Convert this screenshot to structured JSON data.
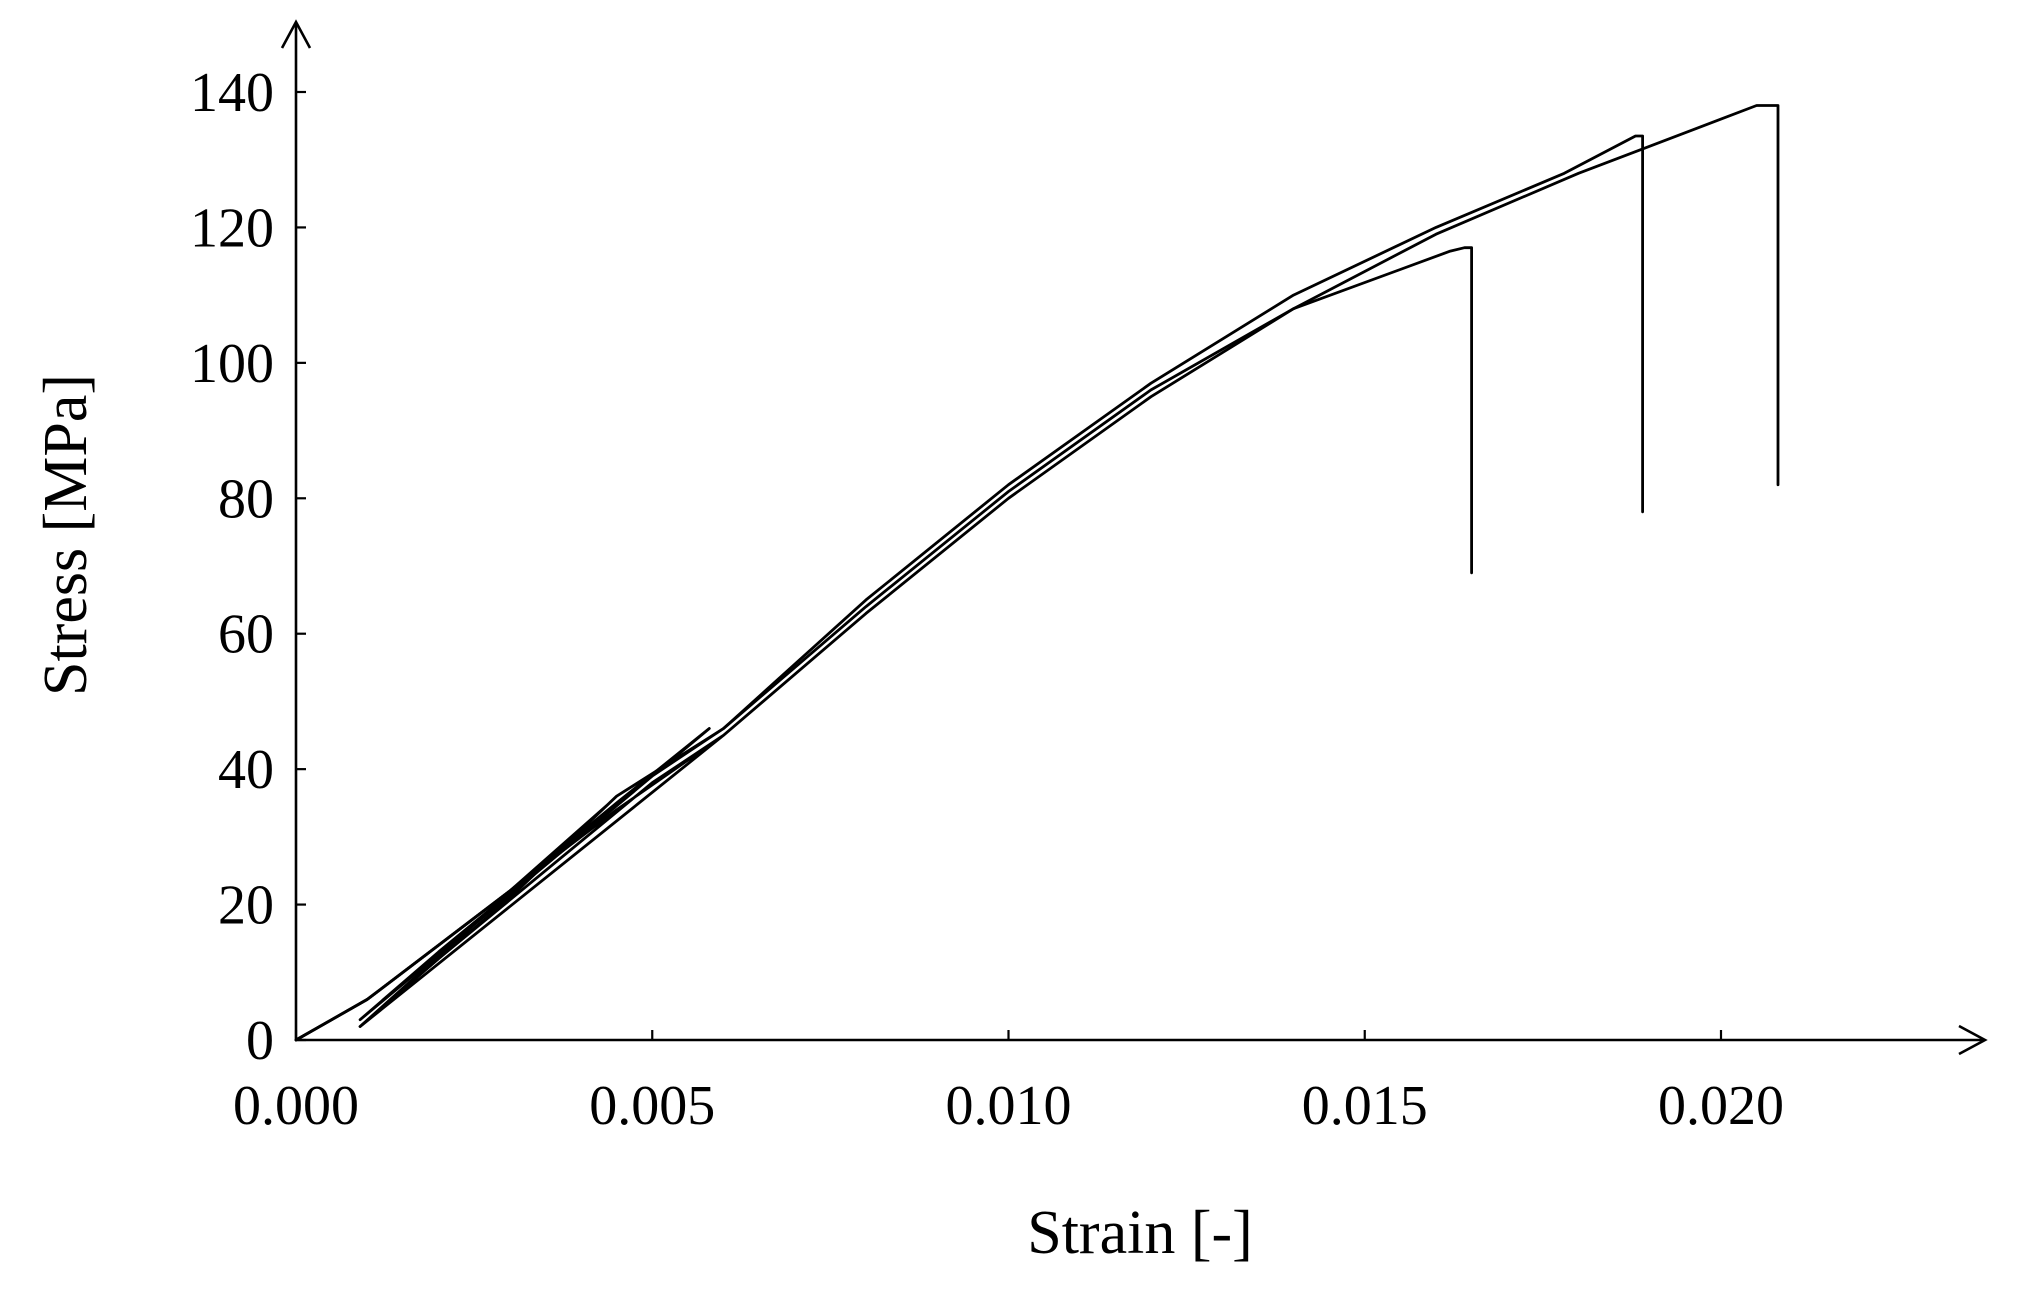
{
  "chart_data": {
    "type": "line",
    "title": "",
    "xlabel": "Strain [-]",
    "ylabel": "Stress [MPa]",
    "xlim": [
      0,
      0.0237
    ],
    "ylim": [
      0,
      148
    ],
    "x_ticks": [
      0.0,
      0.005,
      0.01,
      0.015,
      0.02
    ],
    "x_tick_labels": [
      "0.000",
      "0.005",
      "0.010",
      "0.015",
      "0.020"
    ],
    "y_ticks": [
      0,
      20,
      40,
      60,
      80,
      100,
      120,
      140
    ],
    "y_tick_labels": [
      "0",
      "20",
      "40",
      "60",
      "80",
      "100",
      "120",
      "140"
    ],
    "grid": false,
    "legend": "none",
    "line_color": "#000000",
    "series": [
      {
        "x": [
          0.0,
          0.001,
          0.002,
          0.003,
          0.0044,
          0.0009,
          0.002,
          0.003,
          0.0045,
          0.006,
          0.008,
          0.01,
          0.012,
          0.014,
          0.0162,
          0.0164,
          0.0165,
          0.0165
        ],
        "y": [
          0,
          6,
          14,
          22,
          35,
          2,
          12,
          21,
          36,
          46,
          64,
          81,
          96,
          108,
          116.5,
          117,
          117,
          69
        ]
      },
      {
        "x": [
          0.0,
          0.001,
          0.002,
          0.003,
          0.0045,
          0.0058,
          0.0009,
          0.002,
          0.0035,
          0.005,
          0.006,
          0.008,
          0.01,
          0.012,
          0.014,
          0.016,
          0.0178,
          0.0188,
          0.0189,
          0.0189
        ],
        "y": [
          0,
          6,
          14,
          22,
          35,
          46,
          3,
          13,
          26,
          39,
          46,
          65,
          82,
          97,
          110,
          120,
          128,
          133.5,
          133.5,
          78
        ]
      },
      {
        "x": [
          0.0,
          0.001,
          0.002,
          0.003,
          0.0045,
          0.006,
          0.0009,
          0.002,
          0.0035,
          0.005,
          0.006,
          0.008,
          0.01,
          0.012,
          0.014,
          0.016,
          0.018,
          0.02,
          0.0205,
          0.0206,
          0.0208,
          0.0208
        ],
        "y": [
          0,
          6,
          14,
          22,
          34,
          45,
          2,
          12,
          25,
          38,
          45,
          63,
          80,
          95,
          108,
          119,
          128,
          136,
          138,
          138,
          138,
          82
        ]
      }
    ]
  }
}
